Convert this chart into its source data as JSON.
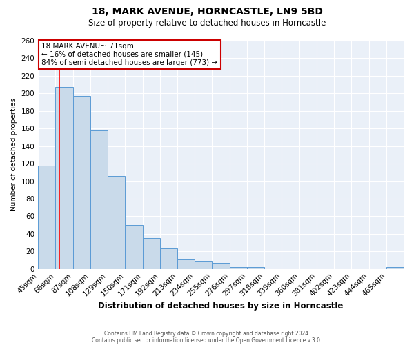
{
  "title": "18, MARK AVENUE, HORNCASTLE, LN9 5BD",
  "subtitle": "Size of property relative to detached houses in Horncastle",
  "bar_heights": [
    118,
    207,
    197,
    158,
    106,
    50,
    35,
    23,
    11,
    9,
    7,
    2,
    2,
    0,
    0,
    0,
    0,
    0,
    0,
    0,
    2
  ],
  "bin_edges": [
    45,
    66,
    87,
    108,
    129,
    150,
    171,
    192,
    213,
    234,
    255,
    276,
    297,
    318,
    339,
    360,
    381,
    402,
    423,
    444,
    465,
    486
  ],
  "x_labels": [
    "45sqm",
    "66sqm",
    "87sqm",
    "108sqm",
    "129sqm",
    "150sqm",
    "171sqm",
    "192sqm",
    "213sqm",
    "234sqm",
    "255sqm",
    "276sqm",
    "297sqm",
    "318sqm",
    "339sqm",
    "360sqm",
    "381sqm",
    "402sqm",
    "423sqm",
    "444sqm",
    "465sqm"
  ],
  "ylabel": "Number of detached properties",
  "xlabel": "Distribution of detached houses by size in Horncastle",
  "ylim": [
    0,
    260
  ],
  "yticks": [
    0,
    20,
    40,
    60,
    80,
    100,
    120,
    140,
    160,
    180,
    200,
    220,
    240,
    260
  ],
  "bar_color": "#c9daea",
  "bar_edge_color": "#5b9bd5",
  "red_line_x": 71,
  "annotation_title": "18 MARK AVENUE: 71sqm",
  "annotation_line1": "← 16% of detached houses are smaller (145)",
  "annotation_line2": "84% of semi-detached houses are larger (773) →",
  "annotation_box_color": "#ffffff",
  "annotation_box_edge": "#cc0000",
  "footer1": "Contains HM Land Registry data © Crown copyright and database right 2024.",
  "footer2": "Contains public sector information licensed under the Open Government Licence v.3.0.",
  "background_color": "#ffffff",
  "grid_color": "#d0dce8",
  "plot_bg_color": "#eaf0f8"
}
